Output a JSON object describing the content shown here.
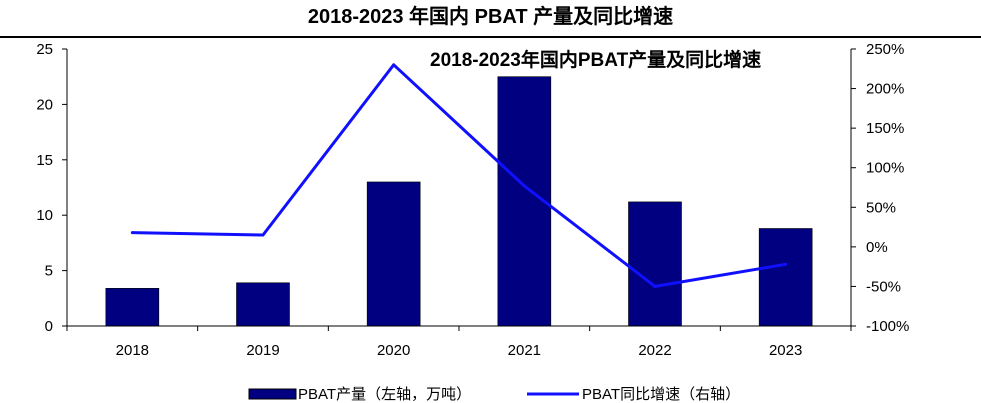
{
  "page_title": "2018-2023 年国内 PBAT 产量及同比增速",
  "chart_data": {
    "type": "bar",
    "title": "2018-2023年国内PBAT产量及同比增速",
    "categories": [
      "2018",
      "2019",
      "2020",
      "2021",
      "2022",
      "2023"
    ],
    "series": [
      {
        "name": "PBAT产量（左轴，万吨）",
        "type": "bar",
        "axis": "left",
        "color": "#000080",
        "values": [
          3.4,
          3.9,
          13.0,
          22.5,
          11.2,
          8.8
        ]
      },
      {
        "name": "PBAT同比增速（右轴）",
        "type": "line",
        "axis": "right",
        "color": "#1010FF",
        "values": [
          18,
          15,
          230,
          77,
          -50,
          -22
        ]
      }
    ],
    "left_axis": {
      "ylim": [
        0,
        25
      ],
      "ticks": [
        0,
        5,
        10,
        15,
        20,
        25
      ],
      "tick_labels": [
        "0",
        "5",
        "10",
        "15",
        "20",
        "25"
      ]
    },
    "right_axis": {
      "ylim": [
        -100,
        250
      ],
      "ticks": [
        -100,
        -50,
        0,
        50,
        100,
        150,
        200,
        250
      ],
      "tick_labels": [
        "-100%",
        "-50%",
        "0%",
        "50%",
        "100%",
        "150%",
        "200%",
        "250%"
      ]
    },
    "grid": false,
    "legend_position": "bottom"
  }
}
